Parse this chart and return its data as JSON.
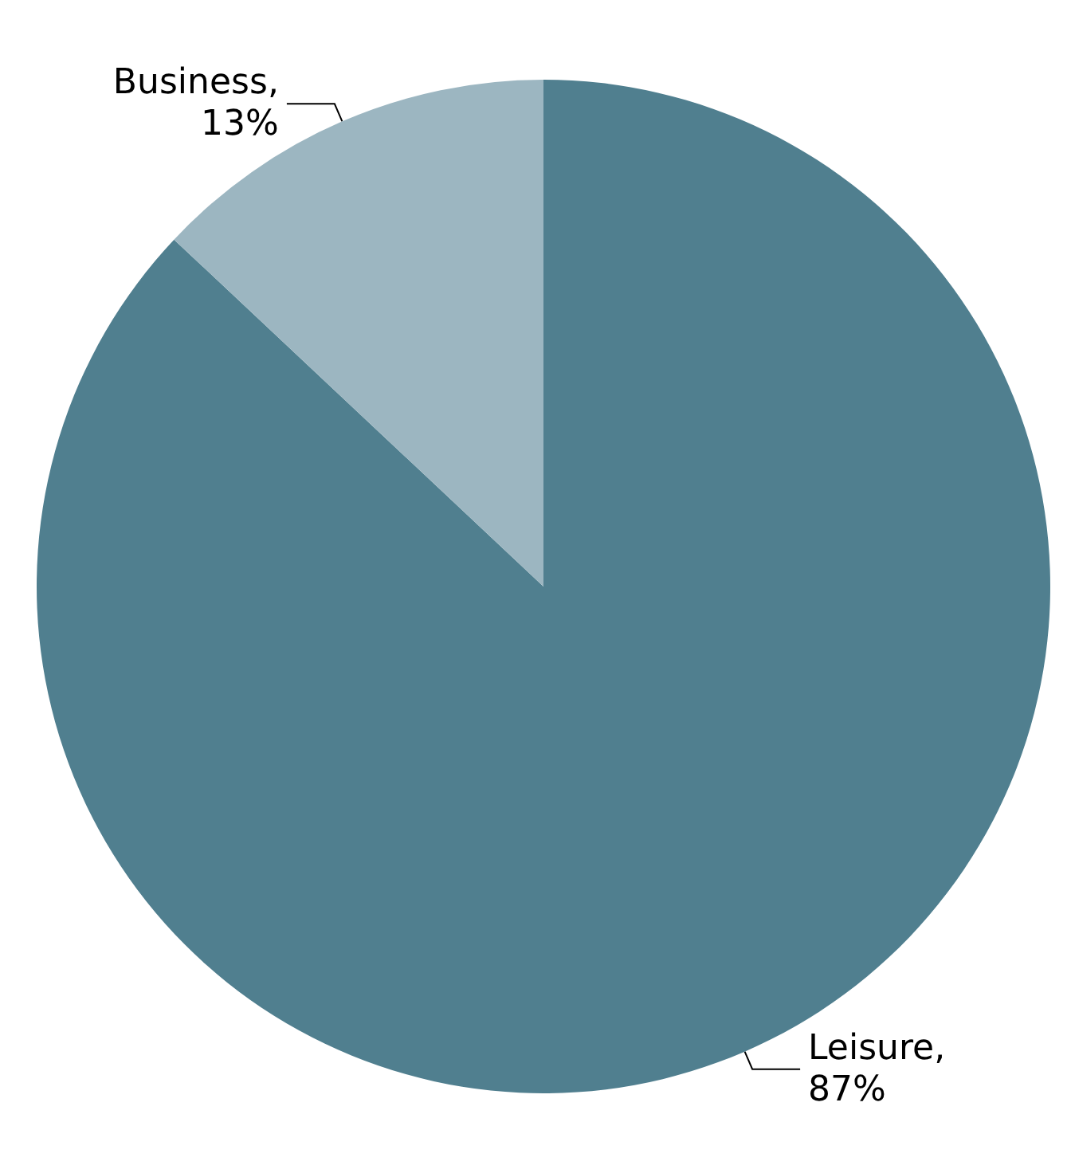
{
  "chart_data": {
    "type": "pie",
    "categories": [
      "Leisure",
      "Business"
    ],
    "values": [
      87,
      13
    ],
    "colors": [
      "#507f8f",
      "#9cb6c1"
    ],
    "value_labels": [
      ", 87%",
      ", 13%"
    ],
    "legend": false
  }
}
